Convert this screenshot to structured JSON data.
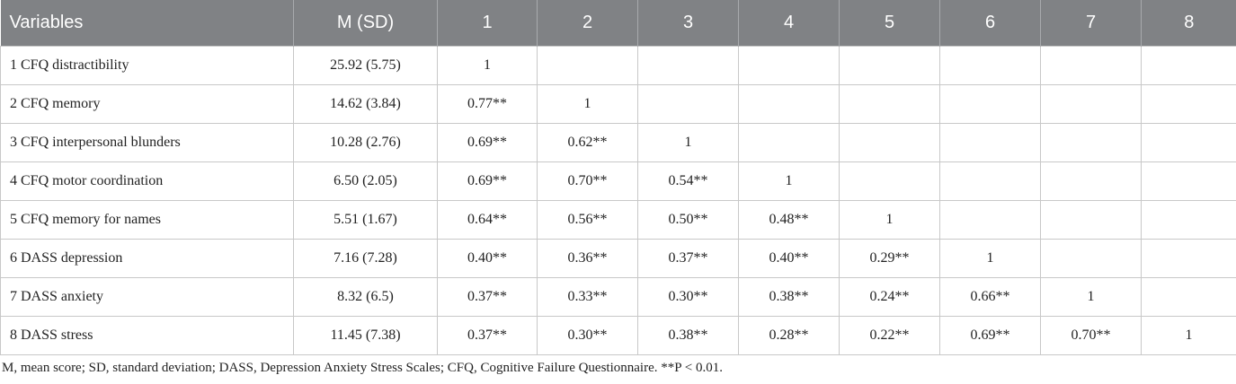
{
  "table": {
    "header": [
      "Variables",
      "M (SD)",
      "1",
      "2",
      "3",
      "4",
      "5",
      "6",
      "7",
      "8"
    ],
    "rows": [
      [
        "1 CFQ distractibility",
        "25.92 (5.75)",
        "1"
      ],
      [
        "2 CFQ memory",
        "14.62 (3.84)",
        "0.77**",
        "1"
      ],
      [
        "3 CFQ interpersonal blunders",
        "10.28 (2.76)",
        "0.69**",
        "0.62**",
        "1"
      ],
      [
        "4 CFQ motor coordination",
        "6.50 (2.05)",
        "0.69**",
        "0.70**",
        "0.54**",
        "1"
      ],
      [
        "5 CFQ memory for names",
        "5.51 (1.67)",
        "0.64**",
        "0.56**",
        "0.50**",
        "0.48**",
        "1"
      ],
      [
        "6 DASS depression",
        "7.16 (7.28)",
        "0.40**",
        "0.36**",
        "0.37**",
        "0.40**",
        "0.29**",
        "1"
      ],
      [
        "7 DASS anxiety",
        "8.32 (6.5)",
        "0.37**",
        "0.33**",
        "0.30**",
        "0.38**",
        "0.24**",
        "0.66**",
        "1"
      ],
      [
        "8 DASS stress",
        "11.45 (7.38)",
        "0.37**",
        "0.30**",
        "0.38**",
        "0.28**",
        "0.22**",
        "0.69**",
        "0.70**",
        "1"
      ]
    ]
  },
  "footnote": "M, mean score; SD, standard deviation; DASS, Depression Anxiety Stress Scales; CFQ, Cognitive Failure Questionnaire. **P < 0.01."
}
